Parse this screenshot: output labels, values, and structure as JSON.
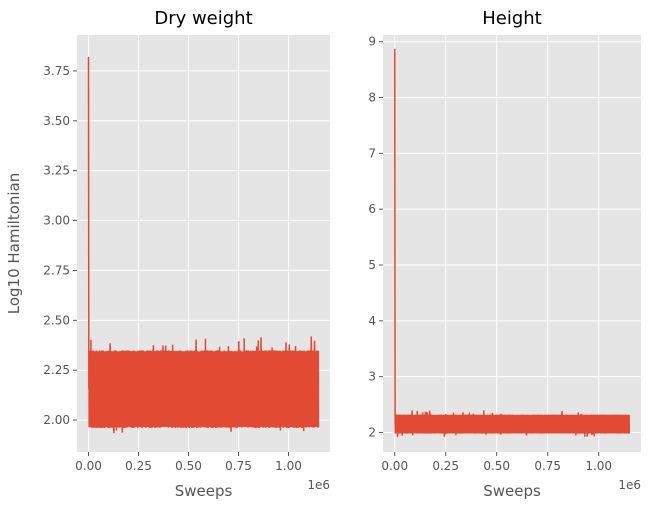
{
  "chart_data": [
    {
      "type": "line",
      "title": "Dry weight",
      "xlabel": "Sweeps",
      "ylabel": "Log10 Hamiltonian",
      "x_offset_label": "1e6",
      "xlim": [
        -57500,
        1207500
      ],
      "ylim": [
        1.84,
        3.93
      ],
      "xticks": [
        0,
        0.25,
        0.5,
        0.75,
        1.0
      ],
      "xtick_labels": [
        "0.00",
        "0.25",
        "0.50",
        "0.75",
        "1.00"
      ],
      "yticks": [
        2.0,
        2.25,
        2.5,
        2.75,
        3.0,
        3.25,
        3.5,
        3.75
      ],
      "ytick_labels": [
        "2.00",
        "2.25",
        "2.50",
        "2.75",
        "3.00",
        "3.25",
        "3.50",
        "3.75"
      ],
      "grid": true,
      "series": [
        {
          "color": "#E24A33",
          "x_range": [
            0,
            1150000
          ],
          "initial_spike": 3.82,
          "band_low": 1.96,
          "band_high": 2.35,
          "outlier_max": 2.42,
          "outlier_min": 1.93
        }
      ]
    },
    {
      "type": "line",
      "title": "Height",
      "xlabel": "Sweeps",
      "ylabel": "",
      "x_offset_label": "1e6",
      "xlim": [
        -57500,
        1207500
      ],
      "ylim": [
        1.65,
        9.12
      ],
      "xticks": [
        0,
        0.25,
        0.5,
        0.75,
        1.0
      ],
      "xtick_labels": [
        "0.00",
        "0.25",
        "0.50",
        "0.75",
        "1.00"
      ],
      "yticks": [
        2,
        3,
        4,
        5,
        6,
        7,
        8,
        9
      ],
      "ytick_labels": [
        "2",
        "3",
        "4",
        "5",
        "6",
        "7",
        "8",
        "9"
      ],
      "grid": true,
      "series": [
        {
          "color": "#E24A33",
          "x_range": [
            0,
            1150000
          ],
          "initial_spike": 8.87,
          "band_low": 1.98,
          "band_high": 2.32,
          "outlier_max": 2.4,
          "outlier_min": 1.92
        }
      ]
    }
  ],
  "colors": {
    "plot_background": "#E5E5E5",
    "grid": "#FFFFFF",
    "series": "#E24A33"
  }
}
